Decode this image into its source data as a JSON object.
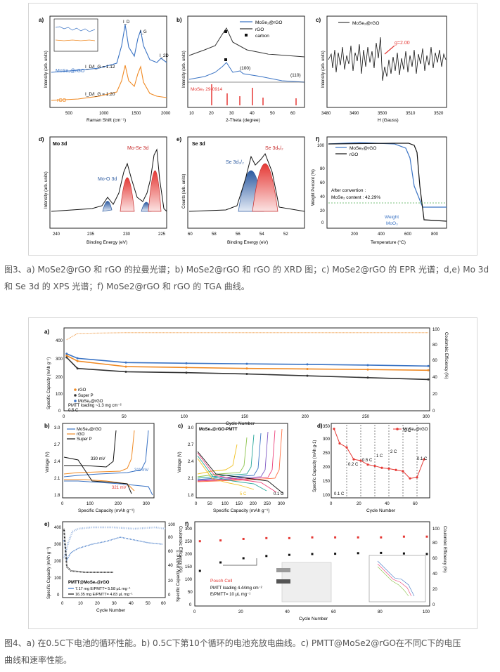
{
  "fig3": {
    "caption": "图3、a) MoSe2@rGO 和 rGO 的拉曼光谱；b) MoSe2@rGO 和 rGO 的 XRD 图；c) MoSe2@rGO 的 EPR 光谱；d,e) Mo 3d 和 Se 3d 的 XPS 光谱；f) MoSe2@rGO 和 rGO 的 TGA 曲线。",
    "panels": {
      "a": {
        "label": "a)",
        "xlabel": "Raman Shift (cm⁻¹)",
        "ylabel": "Intensity (arb. units)",
        "xticks": [
          "500",
          "1000",
          "1500",
          "2000"
        ],
        "peaks": [
          "I_D",
          "I_G",
          "I_2D"
        ],
        "ratios": [
          "I_D/I_G = 1.12",
          "I_D/I_G = 1.20"
        ],
        "series": [
          "MoSe₂@rGO",
          "rGO"
        ]
      },
      "b": {
        "label": "b)",
        "xlabel": "2-Theta (degree)",
        "ylabel": "Intensity (arb. units)",
        "xticks": [
          "10",
          "20",
          "30",
          "40",
          "50",
          "60"
        ],
        "legend": [
          "MoSe₂@rGO",
          "rGO",
          "carbon"
        ],
        "annotations": [
          "(100)",
          "(110)"
        ],
        "ref": "MoSe₂ 29-0914"
      },
      "c": {
        "label": "c)",
        "xlabel": "H (Gauss)",
        "ylabel": "Intensity (arb. units)",
        "xticks": [
          "3480",
          "3490",
          "3500",
          "3510",
          "3520"
        ],
        "legend": "MoSe₂@rGO",
        "annotation": "g=2.00"
      },
      "d": {
        "label": "d)",
        "title": "Mo 3d",
        "xlabel": "Binding Energy (eV)",
        "ylabel": "Intensity (arb. units)",
        "xticks": [
          "240",
          "235",
          "230",
          "225"
        ],
        "annotations": [
          "Mo-Se 3d",
          "Mo-O 3d"
        ]
      },
      "e": {
        "label": "e)",
        "title": "Se 3d",
        "xlabel": "Binding Energy (eV)",
        "ylabel": "Counts (arb. units)",
        "xticks": [
          "60",
          "58",
          "56",
          "54",
          "52"
        ],
        "annotations": [
          "Se 3d₅/₂",
          "Se 3d₃/₂"
        ]
      },
      "f": {
        "label": "f)",
        "xlabel": "Temperature (°C)",
        "ylabel": "Weight Percent (%)",
        "xticks": [
          "200",
          "400",
          "600",
          "800"
        ],
        "yticks": [
          "0",
          "20",
          "40",
          "60",
          "80",
          "100"
        ],
        "legend": [
          "MoSe₂@rGO",
          "rGO"
        ],
        "annotations": [
          "After convertion :",
          "MoSe₂ content : 42.29%",
          "Weight",
          "MoO₃"
        ]
      }
    }
  },
  "fig4": {
    "caption_lines": [
      "图4、a) 在0.5C下电池的循环性能。b) 0.5C下第10个循环的电池充放电曲线。c) PMTT@MoSe2@rGO在不同C下的电压",
      "曲线和速率性能。"
    ],
    "panels": {
      "a": {
        "label": "a)",
        "xlabel": "Cycle Number",
        "ylabel": "Specific Capacity (mAh g⁻¹)",
        "ylabel2": "Coulombic Efficiency (%)",
        "xticks": [
          "0",
          "50",
          "100",
          "150",
          "200",
          "250",
          "300"
        ],
        "yticks": [
          "0",
          "100",
          "200",
          "300",
          "400"
        ],
        "y2ticks": [
          "0",
          "20",
          "40",
          "60",
          "80",
          "100"
        ],
        "legend": [
          "rGO",
          "Super P",
          "MoSe₂@rGO"
        ],
        "notes": [
          "PMTT loading ~1.3 mg cm⁻²",
          "0.5 C"
        ]
      },
      "b": {
        "label": "b)",
        "xlabel": "Specific Capacity (mAh g⁻¹)",
        "ylabel": "Voltage (V)",
        "xticks": [
          "0",
          "100",
          "200",
          "300"
        ],
        "yticks": [
          "1.8",
          "2.1",
          "2.4",
          "2.7",
          "3.0"
        ],
        "legend": [
          "MoSe₂@rGO",
          "rGO",
          "Super P"
        ],
        "annotations": [
          "330 mV",
          "311 mV",
          "321 mV"
        ]
      },
      "c": {
        "label": "c)",
        "title": "MoSe₂@rGO-PMTT",
        "xlabel": "Specific Capacity (mAh g⁻¹)",
        "ylabel": "Voltage (V)",
        "xticks": [
          "0",
          "50",
          "100",
          "150",
          "200",
          "250",
          "300"
        ],
        "yticks": [
          "1.8",
          "2.1",
          "2.4",
          "2.7",
          "3.0"
        ],
        "annotations": [
          "5 C",
          "0.1 C"
        ]
      },
      "d": {
        "label": "d)",
        "xlabel": "Cycle Number",
        "ylabel": "Specific Capacity (mAh g-1)",
        "xticks": [
          "0",
          "20",
          "40",
          "60"
        ],
        "yticks": [
          "100",
          "150",
          "200",
          "250",
          "300",
          "350"
        ],
        "legend": "MoSe₂@rGO",
        "rates": [
          "0.1 C",
          "0.2 C",
          "0.5 C",
          "1 C",
          "2 C",
          "5 C",
          "0.1 C"
        ]
      },
      "e": {
        "label": "e)",
        "xlabel": "Cycle Number",
        "ylabel": "Specific Capacity (mAh g⁻¹)",
        "ylabel2": "Coulombic Efficiency (%)",
        "xticks": [
          "0",
          "10",
          "20",
          "30",
          "40",
          "50",
          "60"
        ],
        "yticks": [
          "0",
          "100",
          "200",
          "300",
          "400"
        ],
        "y2ticks": [
          "0",
          "20",
          "40",
          "60",
          "80",
          "100"
        ],
        "notes": [
          "PMTT@MoSe₂@rGO",
          "7.17 mg E/PMTT= 5.58 μL mg⁻¹",
          "16.35 mg E/PMTT= 4.83 μL mg⁻¹"
        ]
      },
      "f": {
        "label": "f)",
        "xlabel": "Cycle Number",
        "ylabel": "Specific Capacity (mAh g⁻¹)",
        "ylabel2": "Coulombic Efficiency (%)",
        "xticks": [
          "0",
          "20",
          "40",
          "60",
          "80",
          "100"
        ],
        "yticks": [
          "0",
          "50",
          "100",
          "150",
          "200",
          "250",
          "300"
        ],
        "y2ticks": [
          "0",
          "20",
          "40",
          "60",
          "80",
          "100"
        ],
        "notes": [
          "Pouch Cell",
          "PMTT loading 4.44mg cm⁻²",
          "E/PMTT= 10 μL mg⁻¹"
        ]
      }
    }
  },
  "chart_data": [
    {
      "type": "line",
      "id": "fig4a",
      "x": [
        1,
        10,
        50,
        100,
        150,
        200,
        250,
        300
      ],
      "series": [
        {
          "name": "MoSe₂@rGO",
          "values": [
            310,
            285,
            262,
            258,
            255,
            252,
            248,
            243
          ]
        },
        {
          "name": "rGO",
          "values": [
            300,
            270,
            240,
            235,
            230,
            227,
            224,
            220
          ]
        },
        {
          "name": "Super P",
          "values": [
            290,
            230,
            212,
            207,
            200,
            190,
            180,
            170
          ]
        }
      ],
      "coulombic_efficiency": [
        90,
        98,
        99,
        99,
        99,
        99,
        99,
        99
      ]
    },
    {
      "type": "line",
      "id": "fig4d",
      "x": [
        1,
        5,
        10,
        15,
        20,
        25,
        30,
        35,
        40,
        45,
        50,
        55,
        60,
        65
      ],
      "series": [
        {
          "name": "MoSe₂@rGO",
          "values": [
            355,
            300,
            285,
            240,
            235,
            220,
            215,
            208,
            205,
            200,
            195,
            168,
            172,
            240
          ]
        }
      ]
    },
    {
      "type": "scatter",
      "id": "fig4f",
      "x": [
        1,
        10,
        20,
        30,
        40,
        50,
        60,
        70,
        80,
        90,
        100
      ],
      "series": [
        {
          "name": "Specific Capacity",
          "values": [
            125,
            155,
            170,
            178,
            182,
            185,
            186,
            188,
            189,
            187,
            185
          ]
        },
        {
          "name": "Coulombic Efficiency",
          "values": [
            85,
            86,
            88,
            89,
            89,
            90,
            90,
            90,
            90,
            91,
            91
          ]
        }
      ]
    }
  ]
}
